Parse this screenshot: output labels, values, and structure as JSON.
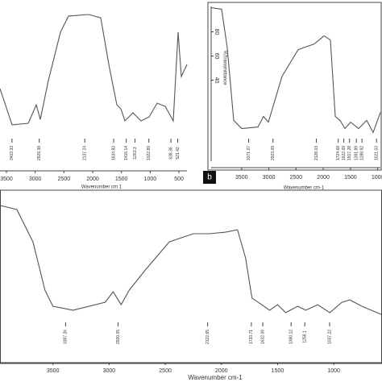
{
  "chart_data": [
    {
      "type": "line",
      "color": "#555555",
      "x": [
        3612,
        3402,
        3121,
        2981,
        2911,
        2771,
        2561,
        2420,
        2070,
        1860,
        1719,
        1579,
        1509,
        1439,
        1299,
        1159,
        1019,
        878,
        738,
        598,
        514,
        458,
        360
      ],
      "values": [
        36.7,
        6.7,
        8,
        23.3,
        11.3,
        43.3,
        83.3,
        96.7,
        98,
        95.3,
        56.7,
        23.3,
        20,
        10,
        16.7,
        10,
        13.3,
        24.7,
        22,
        10,
        83.3,
        46.7,
        56.7
      ],
      "xlim": [
        3612,
        360
      ],
      "ylim": [
        0,
        100
      ],
      "xticks": [
        3500,
        3000,
        2500,
        2000,
        1500,
        1000,
        500
      ],
      "x_label": "Wavenumber cm 1",
      "peaks": [
        3403.33,
        2929.38,
        2137.24,
        1634.83,
        1416.14,
        1263.3,
        1022.89,
        638.36,
        521.42
      ]
    },
    {
      "type": "line",
      "color": "#555555",
      "panel_label": "b",
      "x": [
        4060,
        3867,
        3764,
        3645,
        3497,
        3201,
        3097,
        3008,
        2757,
        2461,
        2164,
        1987,
        1868,
        1779,
        1690,
        1602,
        1498,
        1350,
        1202,
        1083,
        950
      ],
      "values": [
        100,
        98.7,
        66.7,
        6.7,
        0,
        1.3,
        10,
        5.3,
        43.3,
        65.3,
        70,
        76.7,
        73.3,
        10,
        6.7,
        0,
        5.3,
        0,
        6.7,
        -3.3,
        13.3
      ],
      "xlim": [
        4060,
        950
      ],
      "ylim": [
        -27,
        101
      ],
      "xticks": [
        3500,
        3000,
        2500,
        2000,
        1500,
        1000
      ],
      "yticks": [
        40,
        60,
        80
      ],
      "x_label": "Wavenumber cm-1",
      "y_label": "%Transmittance",
      "peaks": [
        3371.27,
        2923.09,
        2128.03,
        1724.68,
        1622.69,
        1517.28,
        1391.89,
        1288.92,
        1021.03
      ]
    },
    {
      "type": "line",
      "color": "#555555",
      "x": [
        3964,
        3821,
        3678,
        3571,
        3500,
        3321,
        3035,
        2964,
        2893,
        2821,
        2678,
        2464,
        2250,
        2107,
        1964,
        1857,
        1785,
        1728,
        1642,
        1571,
        1500,
        1428,
        1321,
        1250,
        1143,
        1035,
        928,
        857,
        750,
        578
      ],
      "values": [
        93.3,
        90,
        63.3,
        23.3,
        10,
        6.7,
        13.3,
        22,
        11.3,
        23.3,
        40,
        63.3,
        70,
        70,
        71.3,
        73.3,
        50,
        16.7,
        11.3,
        6.7,
        11.3,
        4.7,
        10,
        6.7,
        11.3,
        4.7,
        13.3,
        15.3,
        10,
        3.3
      ],
      "xlim": [
        3964,
        578
      ],
      "ylim": [
        0,
        100
      ],
      "xticks": [
        3500,
        3000,
        2500,
        2000,
        1500,
        1000
      ],
      "x_label": "Wavenumber cm-1",
      "peaks": [
        3387.26,
        2920.05,
        2122.65,
        1733.71,
        1632.09,
        1380.12,
        1258.1,
        1037.22
      ]
    }
  ]
}
